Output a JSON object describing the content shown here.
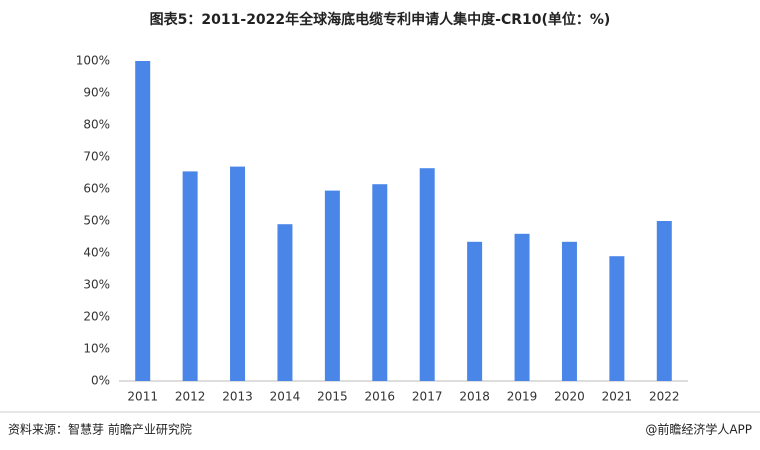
{
  "chart_data": {
    "type": "bar",
    "title": "图表5：2011-2022年全球海底电缆专利申请人集中度-CR10(单位：%)",
    "categories": [
      "2011",
      "2012",
      "2013",
      "2014",
      "2015",
      "2016",
      "2017",
      "2018",
      "2019",
      "2020",
      "2021",
      "2022"
    ],
    "values": [
      100,
      65.5,
      67,
      49,
      59.5,
      61.5,
      66.5,
      43.5,
      46,
      43.5,
      39,
      50
    ],
    "color": "#4a86e8",
    "ylim": [
      0,
      100
    ],
    "yticks": [
      {
        "value": 0,
        "label": "0%"
      },
      {
        "value": 10,
        "label": "10%"
      },
      {
        "value": 20,
        "label": "20%"
      },
      {
        "value": 30,
        "label": "30%"
      },
      {
        "value": 40,
        "label": "40%"
      },
      {
        "value": 50,
        "label": "50%"
      },
      {
        "value": 60,
        "label": "60%"
      },
      {
        "value": 70,
        "label": "70%"
      },
      {
        "value": 80,
        "label": "80%"
      },
      {
        "value": 90,
        "label": "90%"
      },
      {
        "value": 100,
        "label": "100%"
      }
    ],
    "grid": false,
    "source": "资料来源：智慧芽 前瞻产业研究院",
    "credit": "@前瞻经济学人APP"
  }
}
